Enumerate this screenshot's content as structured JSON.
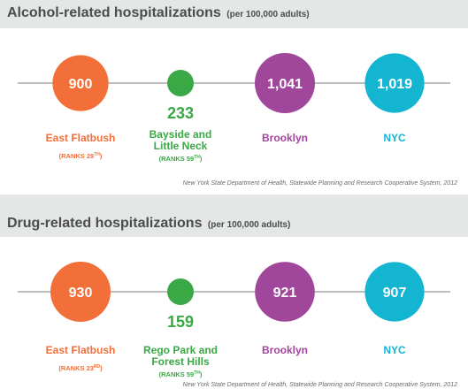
{
  "colors": {
    "orange": "#f26f3a",
    "green": "#3aa845",
    "purple": "#a0479b",
    "cyan": "#13b5d1",
    "line": "#a9a9a9",
    "rank": "#f26f3a"
  },
  "panels": [
    {
      "title": "Alcohol-related hospitalizations",
      "subtitle": "(per 100,000 adults)",
      "source": "New York State Department of Health, Statewide Planning and Research Cooperative System, 2012"
    },
    {
      "title": "Drug-related hospitalizations",
      "subtitle": "(per 100,000 adults)",
      "source": "New York State Department of Health, Statewide Planning and Research Cooperative System, 2012"
    }
  ],
  "chart_data": [
    {
      "type": "bubble",
      "title": "Alcohol-related hospitalizations",
      "subtitle": "(per 100,000 adults)",
      "items": [
        {
          "name_lines": [
            "East Flatbush"
          ],
          "value": 900,
          "label": "900",
          "rank": "(RANKS 29",
          "rank_sup": "TH",
          "color": "orange"
        },
        {
          "name_lines": [
            "Bayside and",
            "Little Neck"
          ],
          "value": 233,
          "label": "233",
          "rank": "(RANKS 59",
          "rank_sup": "TH",
          "color": "green"
        },
        {
          "name_lines": [
            "Brooklyn"
          ],
          "value": 1041,
          "label": "1,041",
          "rank": "",
          "rank_sup": "",
          "color": "purple"
        },
        {
          "name_lines": [
            "NYC"
          ],
          "value": 1019,
          "label": "1,019",
          "rank": "",
          "rank_sup": "",
          "color": "cyan"
        }
      ],
      "source": "New York State Department of Health, Statewide Planning and Research Cooperative System, 2012"
    },
    {
      "type": "bubble",
      "title": "Drug-related hospitalizations",
      "subtitle": "(per 100,000 adults)",
      "items": [
        {
          "name_lines": [
            "East Flatbush"
          ],
          "value": 930,
          "label": "930",
          "rank": "(RANKS 23",
          "rank_sup": "RD",
          "color": "orange"
        },
        {
          "name_lines": [
            "Rego Park and",
            "Forest Hills"
          ],
          "value": 159,
          "label": "159",
          "rank": "(RANKS 59",
          "rank_sup": "TH",
          "color": "green"
        },
        {
          "name_lines": [
            "Brooklyn"
          ],
          "value": 921,
          "label": "921",
          "rank": "",
          "rank_sup": "",
          "color": "purple"
        },
        {
          "name_lines": [
            "NYC"
          ],
          "value": 907,
          "label": "907",
          "rank": "",
          "rank_sup": "",
          "color": "cyan"
        }
      ],
      "source": "New York State Department of Health, Statewide Planning and Research Cooperative System, 2012"
    }
  ]
}
